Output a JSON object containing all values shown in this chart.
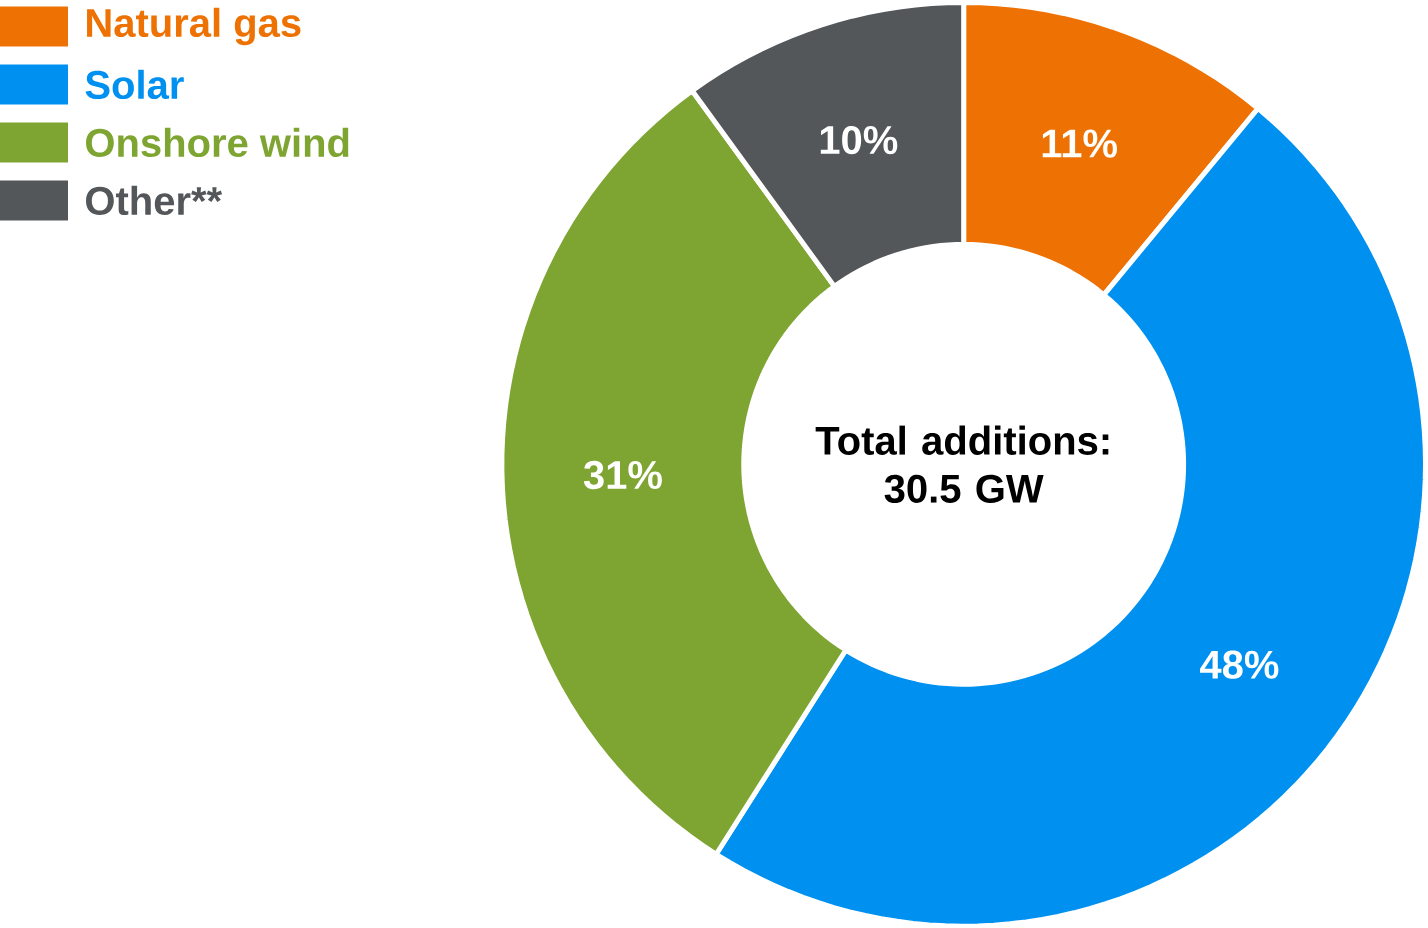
{
  "chart_data": {
    "type": "donut",
    "categories": [
      "Natural gas",
      "Solar",
      "Onshore wind",
      "Other**"
    ],
    "values": [
      11,
      48,
      31,
      10
    ],
    "colors": [
      "#ee7203",
      "#0091f0",
      "#7ea431",
      "#53575a"
    ],
    "value_labels": [
      "11%",
      "48%",
      "31%",
      "10%"
    ],
    "legend": "top left",
    "annotations": [
      "Total additions: 30.5 GW"
    ]
  }
}
